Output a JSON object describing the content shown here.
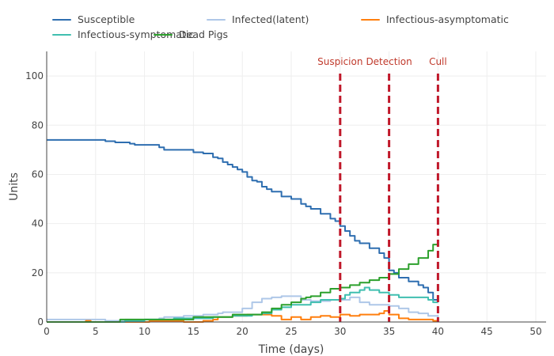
{
  "chart_data": {
    "type": "line",
    "title": "",
    "xlabel": "Time (days)",
    "ylabel": "Units",
    "xlim": [
      0,
      51
    ],
    "ylim": [
      0,
      110
    ],
    "xticks": [
      0,
      5,
      10,
      15,
      20,
      25,
      30,
      35,
      40,
      45,
      50
    ],
    "yticks": [
      0,
      20,
      40,
      60,
      80,
      100
    ],
    "grid": true,
    "legend_position": "top",
    "series": [
      {
        "name": "Susceptible",
        "color": "#2e6eb0",
        "x": [
          0,
          5.5,
          6,
          7,
          8.5,
          9,
          10.5,
          11.5,
          12,
          14.5,
          15,
          16,
          17,
          17.5,
          18,
          18.5,
          19,
          19.5,
          20,
          20.5,
          21,
          21.5,
          22,
          22.5,
          23,
          24,
          25,
          26,
          26.5,
          27,
          28,
          29,
          29.5,
          30,
          30.5,
          31,
          31.5,
          32,
          33,
          34,
          34.5,
          35,
          35.5,
          36,
          37,
          38,
          38.5,
          39,
          39.5,
          40
        ],
        "values": [
          74,
          74,
          73.5,
          73,
          72.5,
          72,
          72,
          71,
          70,
          70,
          69,
          68.5,
          67,
          66.5,
          65,
          64,
          63,
          62,
          61,
          59,
          57.5,
          57,
          55,
          54,
          53,
          51,
          50,
          48,
          47,
          46,
          44,
          42,
          41,
          39,
          37,
          35,
          33,
          32,
          30,
          28,
          26,
          21,
          20,
          18,
          16.5,
          15,
          14,
          12,
          9,
          8.5
        ]
      },
      {
        "name": "Infected(latent)",
        "color": "#aec7e8",
        "x": [
          0,
          5,
          6,
          8,
          10,
          11.5,
          12,
          13,
          14,
          15,
          16,
          17,
          17.5,
          18,
          19,
          20,
          21,
          22,
          23,
          24,
          25,
          26,
          27,
          28,
          29,
          30,
          31,
          32,
          33,
          34,
          35,
          36,
          37,
          38,
          39,
          40
        ],
        "values": [
          1,
          1,
          0.5,
          1,
          1,
          1.5,
          2,
          2,
          2.5,
          2.5,
          3,
          3,
          3.5,
          4,
          4,
          5.5,
          8,
          9.5,
          10,
          10.5,
          10.5,
          9,
          8.5,
          8.5,
          9,
          9,
          10,
          8,
          7,
          7,
          6.5,
          5.5,
          4,
          3.5,
          2.5,
          1.5
        ]
      },
      {
        "name": "Infectious-asymptomatic",
        "color": "#ff7f0e",
        "x": [
          0,
          3.5,
          4,
          4.5,
          6,
          8,
          10,
          10.5,
          12,
          14,
          15,
          16,
          17,
          17.5,
          18,
          19,
          20,
          20.5,
          21,
          22,
          23,
          24,
          25,
          26,
          27,
          28,
          29,
          30,
          31,
          32,
          33,
          34,
          34.5,
          35,
          35.5,
          36,
          37,
          38,
          39,
          39.5,
          40
        ],
        "values": [
          0,
          0,
          0.5,
          0,
          0,
          0,
          0,
          0.5,
          0.5,
          0,
          0,
          0.5,
          1,
          2,
          2,
          2.5,
          2.5,
          3,
          3,
          3,
          2.5,
          1,
          2,
          1,
          2,
          2.5,
          2,
          3,
          2.5,
          3,
          3,
          3.5,
          4.5,
          3,
          3,
          1.5,
          1,
          1,
          1,
          0.5,
          0.5
        ]
      },
      {
        "name": "Infectious-symptomatic",
        "color": "#40bfb0",
        "x": [
          0,
          6,
          8,
          10,
          12,
          13,
          15,
          17,
          18,
          19,
          20,
          21,
          22,
          23,
          24,
          25,
          26,
          27,
          28,
          29,
          30,
          30.5,
          31,
          32,
          32.5,
          33,
          34,
          35,
          36,
          37,
          38,
          39,
          39.5,
          40
        ],
        "values": [
          0,
          0,
          0.5,
          1,
          1,
          1.5,
          1.5,
          2,
          2,
          2.5,
          2.5,
          3,
          3.5,
          5,
          6,
          7,
          7,
          8,
          9,
          9,
          9.5,
          11,
          12,
          13,
          14,
          13,
          12,
          11,
          10,
          10,
          10,
          9,
          8,
          8
        ]
      },
      {
        "name": "Dead Pigs",
        "color": "#2ca02c",
        "x": [
          0,
          7,
          7.5,
          14,
          15,
          18,
          19,
          21,
          22,
          23,
          24,
          25,
          26,
          26.5,
          27,
          28,
          29,
          30,
          31,
          32,
          33,
          34,
          35,
          36,
          37,
          38,
          39,
          39.5,
          40
        ],
        "values": [
          0,
          0,
          1,
          1,
          2,
          2,
          3,
          3,
          4,
          5.5,
          7,
          8,
          9.5,
          10,
          10.5,
          12,
          13.5,
          14,
          15,
          16,
          17,
          18,
          19.5,
          21.5,
          23.5,
          26,
          29,
          31.5,
          33.5
        ]
      }
    ],
    "annotations": [
      {
        "label": "Suspicion",
        "x": 30,
        "color": "#c0182a",
        "style": "dashed-vertical"
      },
      {
        "label": "Detection",
        "x": 35,
        "color": "#c0182a",
        "style": "dashed-vertical"
      },
      {
        "label": "Cull",
        "x": 40,
        "color": "#c0182a",
        "style": "dashed-vertical"
      }
    ]
  }
}
